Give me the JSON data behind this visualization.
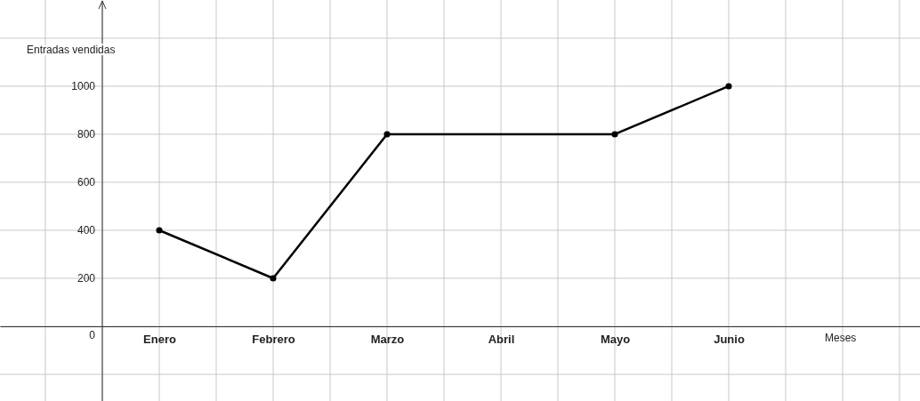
{
  "chart_data": {
    "type": "line",
    "xlabel": "Meses",
    "ylabel": "Entradas vendidas",
    "categories": [
      "Enero",
      "Febrero",
      "Marzo",
      "Abril",
      "Mayo",
      "Junio"
    ],
    "values": [
      400,
      200,
      800,
      null,
      800,
      1000
    ],
    "color": "#000000",
    "marker": "circle",
    "line_style": "solid",
    "grid": true,
    "ylim": [
      -311,
      1359
    ],
    "yticks": [
      {
        "value": -200,
        "label": null
      },
      0,
      200,
      400,
      600,
      800,
      1000,
      {
        "value": 1200,
        "label": null
      }
    ]
  }
}
